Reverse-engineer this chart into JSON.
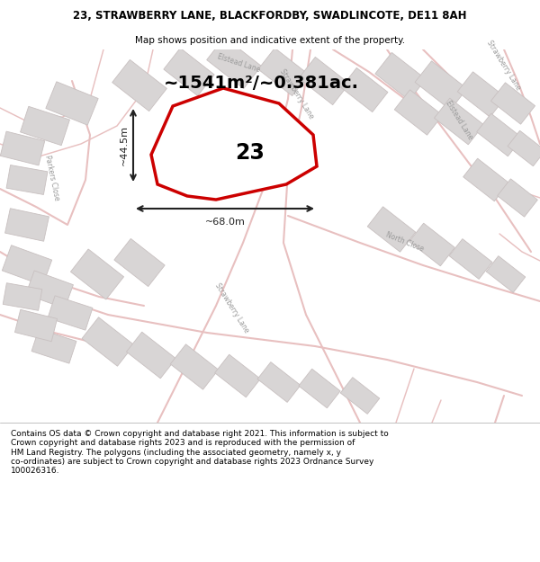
{
  "title_line1": "23, STRAWBERRY LANE, BLACKFORDBY, SWADLINCOTE, DE11 8AH",
  "title_line2": "Map shows position and indicative extent of the property.",
  "area_text": "~1541m²/~0.381ac.",
  "label_number": "23",
  "dim_width": "~68.0m",
  "dim_height": "~44.5m",
  "footer_text": "Contains OS data © Crown copyright and database right 2021. This information is subject to\nCrown copyright and database rights 2023 and is reproduced with the permission of\nHM Land Registry. The polygons (including the associated geometry, namely x, y\nco-ordinates) are subject to Crown copyright and database rights 2023 Ordnance Survey\n100026316.",
  "map_bg": "#f0eeee",
  "road_color": "#e8c0c0",
  "block_color": "#d8d5d5",
  "block_edge": "#c8c0c0",
  "property_fill": "#ffffff",
  "property_edge": "#cc0000",
  "dim_color": "#222222",
  "title_bg": "#ffffff",
  "footer_bg": "#ffffff",
  "fig_width": 6.0,
  "fig_height": 6.25
}
